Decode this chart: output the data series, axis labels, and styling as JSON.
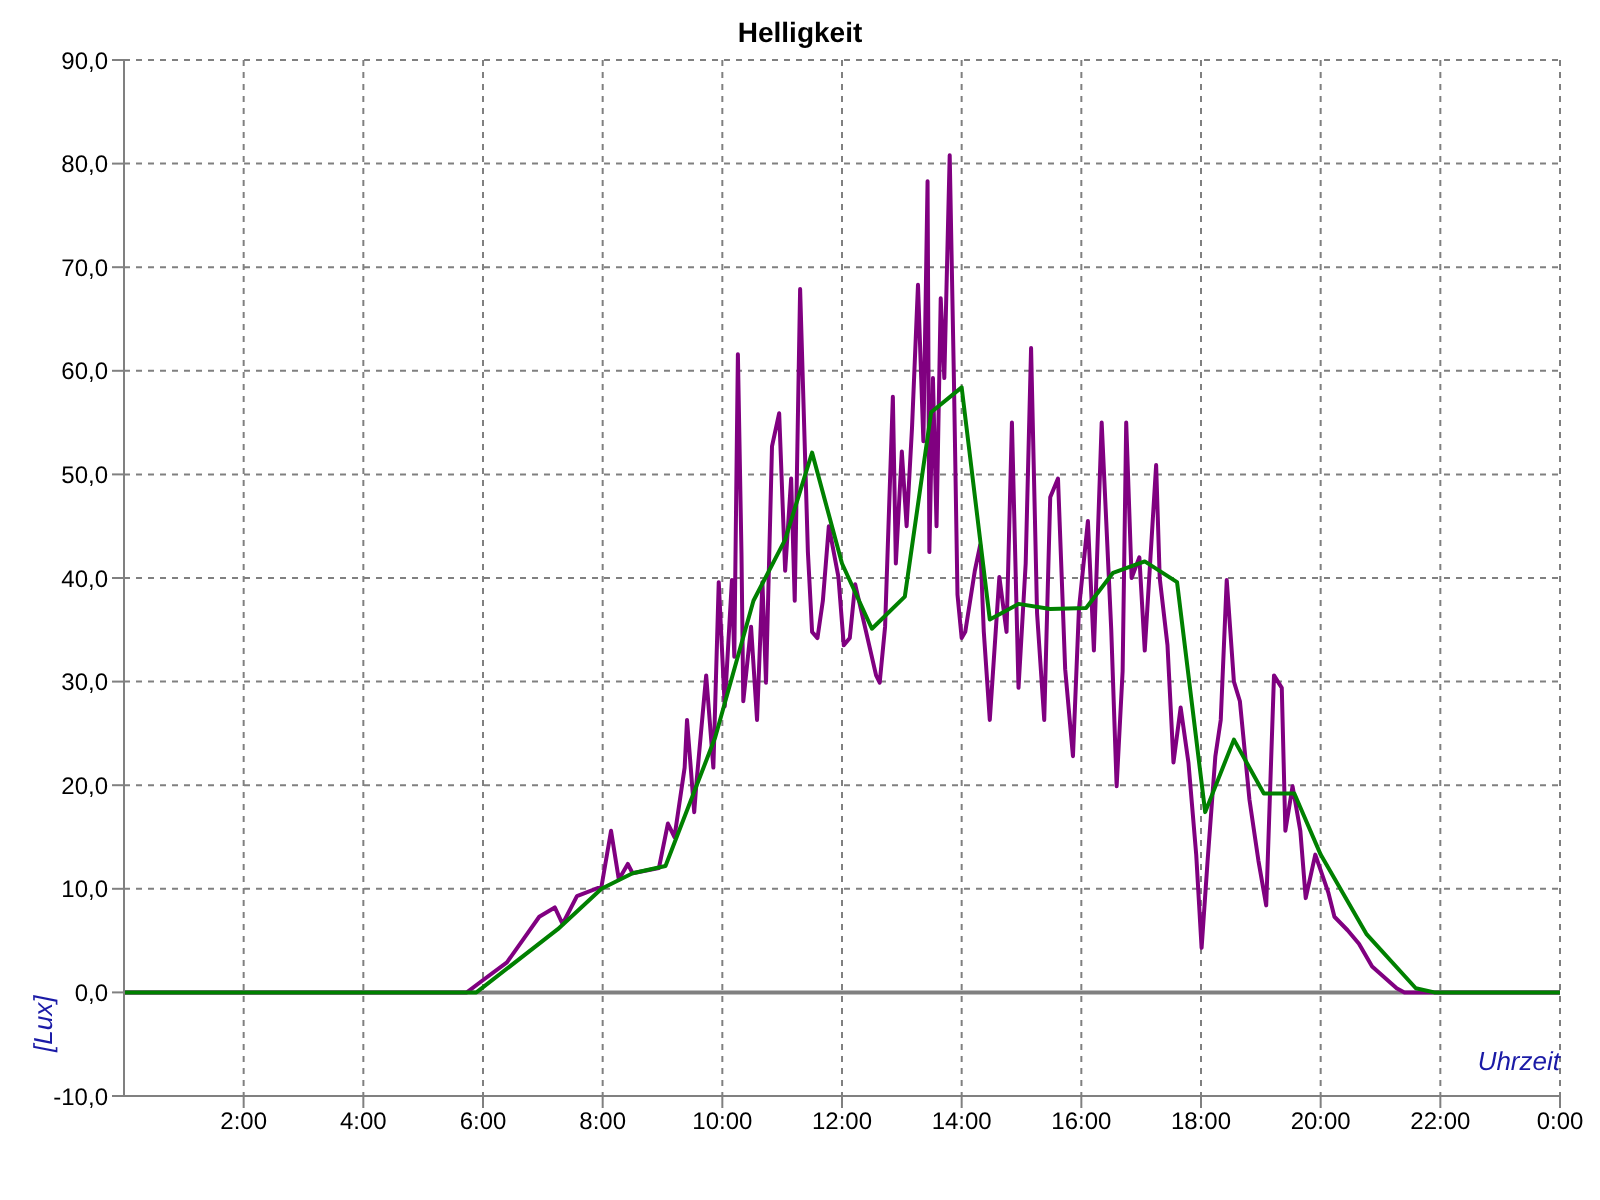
{
  "chart_data": {
    "type": "line",
    "title": "Helligkeit",
    "xlabel": "Uhrzeit",
    "ylabel": "[Lux]",
    "xlim": [
      0,
      24
    ],
    "xticks": [
      {
        "value": 2,
        "label": "2:00"
      },
      {
        "value": 4,
        "label": "4:00"
      },
      {
        "value": 6,
        "label": "6:00"
      },
      {
        "value": 8,
        "label": "8:00"
      },
      {
        "value": 10,
        "label": "10:00"
      },
      {
        "value": 12,
        "label": "12:00"
      },
      {
        "value": 14,
        "label": "14:00"
      },
      {
        "value": 16,
        "label": "16:00"
      },
      {
        "value": 18,
        "label": "18:00"
      },
      {
        "value": 20,
        "label": "20:00"
      },
      {
        "value": 22,
        "label": "22:00"
      },
      {
        "value": 24,
        "label": "0:00"
      }
    ],
    "ylim": [
      -10,
      90
    ],
    "yticks": [
      {
        "value": -10,
        "label": "-10,0"
      },
      {
        "value": 0,
        "label": "0,0"
      },
      {
        "value": 10,
        "label": "10,0"
      },
      {
        "value": 20,
        "label": "20,0"
      },
      {
        "value": 30,
        "label": "30,0"
      },
      {
        "value": 40,
        "label": "40,0"
      },
      {
        "value": 50,
        "label": "50,0"
      },
      {
        "value": 60,
        "label": "60,0"
      },
      {
        "value": 70,
        "label": "70,0"
      },
      {
        "value": 80,
        "label": "80,0"
      },
      {
        "value": 90,
        "label": "90,0"
      }
    ],
    "grid": true,
    "marker": "none",
    "line_style": "solid",
    "ref_lines": [
      {
        "axis": "y",
        "value": 0,
        "color": "#808080"
      }
    ],
    "series": [
      {
        "color": "#800080",
        "x": [
          0,
          5.73,
          5.98,
          6.4,
          6.72,
          6.94,
          7.2,
          7.33,
          7.57,
          7.98,
          8.14,
          8.27,
          8.42,
          8.5,
          8.94,
          9.09,
          9.2,
          9.37,
          9.41,
          9.53,
          9.57,
          9.73,
          9.85,
          9.94,
          10.04,
          10.16,
          10.2,
          10.26,
          10.32,
          10.35,
          10.48,
          10.58,
          10.67,
          10.73,
          10.83,
          10.95,
          11.05,
          11.15,
          11.21,
          11.3,
          11.43,
          11.5,
          11.59,
          11.68,
          11.78,
          11.94,
          12.03,
          12.13,
          12.22,
          12.57,
          12.63,
          12.72,
          12.85,
          12.9,
          13.0,
          13.08,
          13.17,
          13.27,
          13.36,
          13.43,
          13.46,
          13.52,
          13.58,
          13.65,
          13.71,
          13.8,
          13.87,
          13.93,
          14.0,
          14.06,
          14.22,
          14.31,
          14.37,
          14.47,
          14.63,
          14.75,
          14.84,
          14.95,
          15.07,
          15.16,
          15.26,
          15.38,
          15.48,
          15.61,
          15.73,
          15.86,
          15.96,
          16.11,
          16.21,
          16.34,
          16.5,
          16.59,
          16.69,
          16.75,
          16.84,
          16.97,
          17.06,
          17.25,
          17.31,
          17.44,
          17.54,
          17.66,
          17.79,
          17.92,
          18.01,
          18.11,
          18.24,
          18.33,
          18.43,
          18.55,
          18.65,
          18.81,
          18.96,
          19.09,
          19.22,
          19.35,
          19.41,
          19.53,
          19.66,
          19.75,
          19.91,
          20.13,
          20.23,
          20.45,
          20.64,
          20.86,
          21.27,
          21.4,
          24
        ],
        "values": [
          0,
          0,
          1.1,
          2.9,
          5.5,
          7.3,
          8.2,
          6.6,
          9.3,
          10.2,
          15.6,
          10.9,
          12.4,
          11.5,
          12.0,
          16.3,
          15.0,
          21.7,
          26.3,
          17.4,
          20.4,
          30.6,
          21.7,
          39.6,
          27.6,
          39.8,
          32.4,
          61.6,
          42.3,
          28.1,
          35.3,
          26.3,
          39.6,
          29.9,
          52.7,
          55.9,
          40.7,
          49.6,
          37.8,
          67.9,
          42.5,
          34.8,
          34.2,
          37.8,
          45.0,
          40.1,
          33.5,
          34.2,
          39.4,
          30.6,
          29.9,
          35.3,
          57.5,
          41.4,
          52.2,
          45.0,
          54.5,
          68.3,
          53.2,
          78.3,
          42.5,
          59.3,
          45.0,
          67.0,
          59.3,
          80.8,
          59.3,
          38.4,
          34.2,
          34.8,
          40.7,
          43.2,
          34.8,
          26.3,
          40.1,
          34.8,
          55.0,
          29.4,
          41.4,
          62.2,
          36.6,
          26.3,
          47.8,
          49.6,
          31.2,
          22.8,
          37.0,
          45.5,
          33.0,
          55.0,
          35.0,
          19.9,
          31.0,
          55.0,
          40.0,
          42.0,
          33.0,
          50.9,
          40.0,
          33.5,
          22.2,
          27.5,
          22.2,
          13.3,
          4.3,
          12.7,
          22.8,
          26.3,
          39.8,
          30.0,
          28.1,
          18.6,
          12.7,
          8.4,
          30.6,
          29.4,
          15.6,
          19.9,
          15.6,
          9.1,
          13.3,
          9.6,
          7.3,
          6.0,
          4.7,
          2.5,
          0.4,
          0,
          0
        ]
      },
      {
        "color": "#008000",
        "x": [
          0,
          5.89,
          7.25,
          7.98,
          8.5,
          9.05,
          9.88,
          10.52,
          11.05,
          11.5,
          12.0,
          12.5,
          13.05,
          13.49,
          14.0,
          14.47,
          14.95,
          15.48,
          16.08,
          16.53,
          17.06,
          17.6,
          18.07,
          18.55,
          19.05,
          19.56,
          20.0,
          20.77,
          21.59,
          21.9,
          24
        ],
        "values": [
          0,
          0,
          6.1,
          10.0,
          11.5,
          12.2,
          24.6,
          37.8,
          43.7,
          52.1,
          41.4,
          35.1,
          38.2,
          56.0,
          58.4,
          36.0,
          37.5,
          37.0,
          37.1,
          40.5,
          41.6,
          39.6,
          17.4,
          24.4,
          19.2,
          19.2,
          13.3,
          5.6,
          0.4,
          0,
          0
        ]
      }
    ]
  }
}
